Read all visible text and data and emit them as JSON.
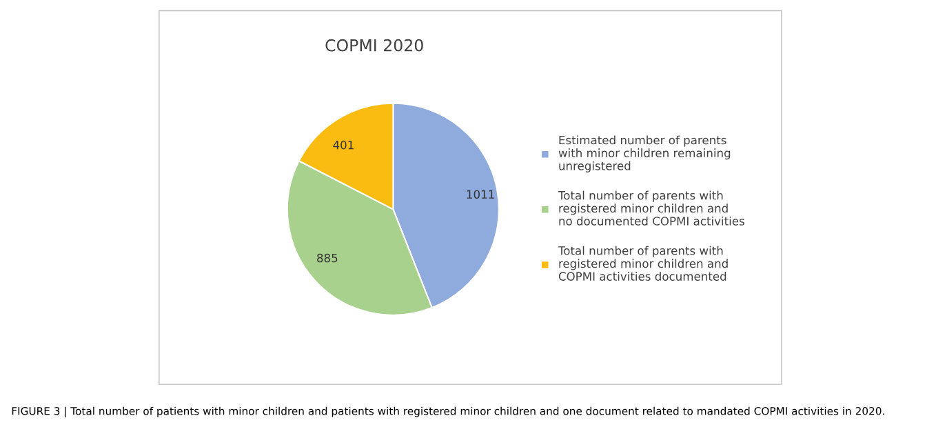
{
  "chart_data": {
    "type": "pie",
    "title": "COPMI 2020",
    "categories": [
      "Estimated number of parents with minor children remaining unregistered",
      "Total number of parents with registered minor children and no documented COPMI activities",
      "Total number of parents with registered minor children and COPMI activities documented"
    ],
    "values": [
      1011,
      885,
      401
    ],
    "colors": [
      "#8faadc",
      "#a9d18e",
      "#fbbc12"
    ],
    "data_labels": true,
    "legend": "right",
    "annotations": [
      "FIGURE 3 | Total number of patients with minor children and patients with registered minor children and one document related to mandated COPMI activities in 2020."
    ]
  }
}
